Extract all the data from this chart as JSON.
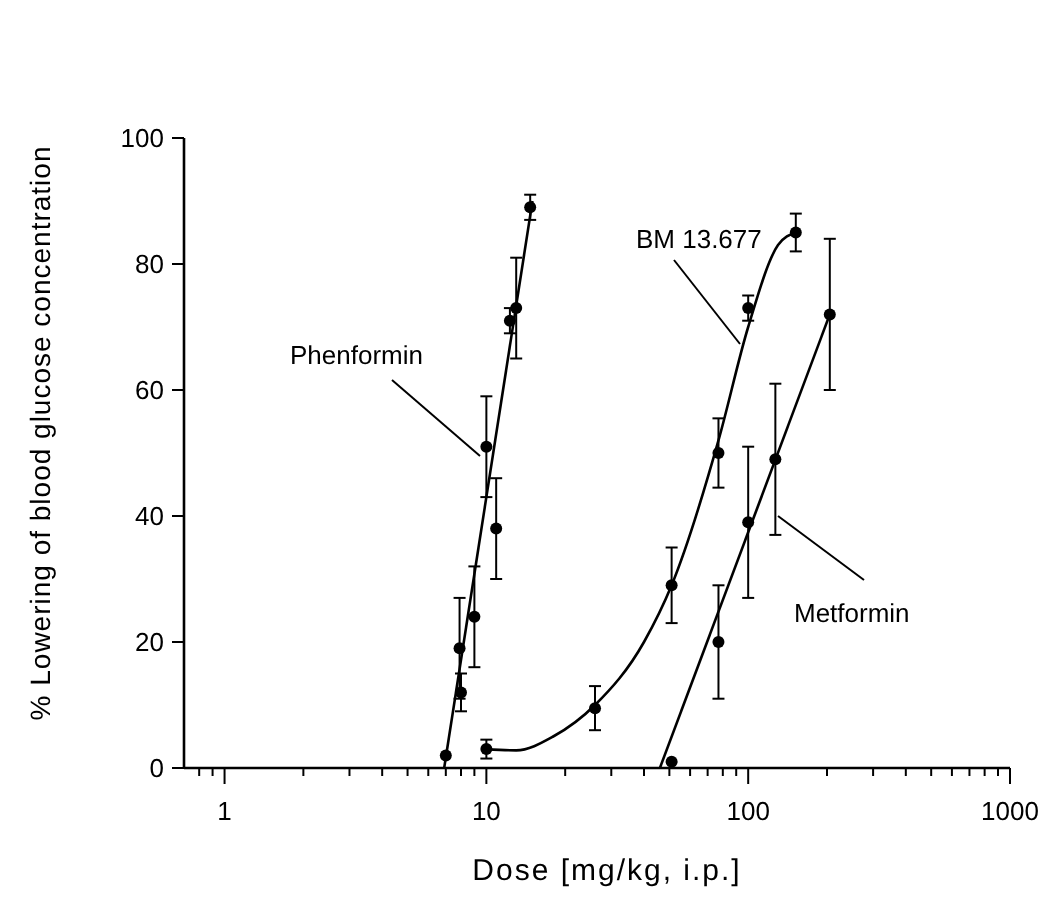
{
  "chart_data": {
    "type": "scatter",
    "xlabel": "Dose [mg/kg, i.p.]",
    "ylabel": "% Lowering of blood glucose concentration",
    "log": "x",
    "xlim": [
      0.7,
      1000
    ],
    "ylim": [
      0,
      100
    ],
    "yticks": [
      0,
      20,
      40,
      60,
      80,
      100
    ],
    "xticks": [
      {
        "value": 0.8,
        "label": null
      },
      {
        "value": 0.9,
        "label": null
      },
      1,
      {
        "value": 2,
        "label": null
      },
      {
        "value": 3,
        "label": null
      },
      {
        "value": 4,
        "label": null
      },
      {
        "value": 5,
        "label": null
      },
      {
        "value": 6,
        "label": null
      },
      {
        "value": 7,
        "label": null
      },
      {
        "value": 8,
        "label": null
      },
      {
        "value": 9,
        "label": null
      },
      10,
      {
        "value": 20,
        "label": null
      },
      {
        "value": 30,
        "label": null
      },
      {
        "value": 40,
        "label": null
      },
      {
        "value": 50,
        "label": null
      },
      {
        "value": 60,
        "label": null
      },
      {
        "value": 70,
        "label": null
      },
      {
        "value": 80,
        "label": null
      },
      {
        "value": 90,
        "label": null
      },
      100,
      {
        "value": 200,
        "label": null
      },
      {
        "value": 300,
        "label": null
      },
      {
        "value": 400,
        "label": null
      },
      {
        "value": 500,
        "label": null
      },
      {
        "value": 600,
        "label": null
      },
      {
        "value": 700,
        "label": null
      },
      {
        "value": 800,
        "label": null
      },
      {
        "value": 900,
        "label": null
      },
      1000
    ],
    "grid": false,
    "series": [
      {
        "name": "Phenformin",
        "marker": "circle",
        "color": "#000000",
        "x": [
          7.0,
          7.9,
          8.0,
          9.0,
          10,
          10.9,
          12.3,
          13.0,
          14.7
        ],
        "values": [
          2,
          19,
          12,
          24,
          51,
          38,
          71,
          73,
          89
        ],
        "errors": [
          null,
          8,
          3,
          8,
          8,
          8,
          2,
          8,
          2
        ]
      },
      {
        "type": "line",
        "marker": "none",
        "color": "#000000",
        "x": [
          6.9,
          15
        ],
        "values": [
          0,
          90
        ]
      },
      {
        "name": "BM 13.677",
        "marker": "circle",
        "color": "#000000",
        "x": [
          10,
          26,
          51,
          77,
          100,
          152
        ],
        "values": [
          3,
          9.5,
          29,
          50,
          73,
          85
        ],
        "errors": [
          1.5,
          3.5,
          6,
          5.5,
          2,
          3
        ]
      },
      {
        "type": "line",
        "marker": "none",
        "color": "#000000",
        "x": [
          10,
          13,
          18,
          26,
          40,
          51,
          77,
          100,
          130,
          152
        ],
        "values": [
          3,
          2.8,
          5,
          10,
          20,
          29,
          52,
          70,
          83,
          85
        ]
      },
      {
        "name": "Metformin",
        "marker": "circle",
        "color": "#000000",
        "x": [
          51,
          77,
          100,
          127,
          205
        ],
        "values": [
          1,
          20,
          39,
          49,
          72
        ],
        "errors": [
          null,
          9,
          12,
          12,
          12
        ]
      },
      {
        "type": "line",
        "marker": "none",
        "color": "#000000",
        "x": [
          46,
          205
        ],
        "values": [
          0,
          72
        ]
      }
    ]
  }
}
